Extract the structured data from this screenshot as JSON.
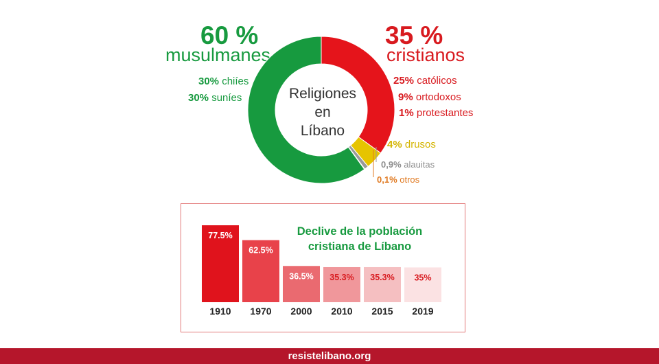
{
  "headline_left": {
    "pct": "60 %",
    "label": "musulmanes"
  },
  "headline_right": {
    "pct": "35 %",
    "label": "cristianos"
  },
  "center_lines": [
    "Religiones",
    "en",
    "Líbano"
  ],
  "colors": {
    "muslim": "#179a3f",
    "christian": "#e5141b",
    "druze": "#e6c400",
    "alawite": "#9a9a9a",
    "other": "#e07a22",
    "brand_footer": "#b5162b"
  },
  "legend": {
    "muslim_sub": [
      {
        "pct": "30%",
        "label": "chiíes"
      },
      {
        "pct": "30%",
        "label": "suníes"
      }
    ],
    "christian_sub": [
      {
        "pct": "25%",
        "label": "católicos"
      },
      {
        "pct": "9%",
        "label": "ortodoxos"
      },
      {
        "pct": "1%",
        "label": "protestantes"
      }
    ],
    "druze": {
      "pct": "4%",
      "label": "drusos"
    },
    "alawite": {
      "pct": "0,9%",
      "label": "alauitas"
    },
    "other": {
      "pct": "0,1%",
      "label": "otros"
    }
  },
  "bar_title_lines": [
    "Declive de la población",
    "cristiana de Líbano"
  ],
  "footer": "resistelibano.org",
  "chart_data": [
    {
      "type": "pie",
      "title": "Religiones en Líbano",
      "slices": [
        {
          "name": "cristianos",
          "value": 35,
          "color": "#e5141b"
        },
        {
          "name": "drusos",
          "value": 4,
          "color": "#e6c400"
        },
        {
          "name": "alauitas",
          "value": 0.9,
          "color": "#9a9a9a"
        },
        {
          "name": "otros",
          "value": 0.1,
          "color": "#e07a22"
        },
        {
          "name": "musulmanes",
          "value": 60,
          "color": "#179a3f"
        }
      ]
    },
    {
      "type": "bar",
      "title": "Declive de la población cristiana de Líbano",
      "categories": [
        "1910",
        "1970",
        "2000",
        "2010",
        "2015",
        "2019"
      ],
      "values": [
        77.5,
        62.5,
        36.5,
        35.3,
        35.3,
        35
      ],
      "value_labels": [
        "77.5%",
        "62.5%",
        "36.5%",
        "35.3%",
        "35.3%",
        "35%"
      ],
      "colors": [
        "#e0131c",
        "#e8424a",
        "#ea6a70",
        "#f0979b",
        "#f5bfc1",
        "#fbe2e3"
      ],
      "label_colors": [
        "#ffffff",
        "#ffffff",
        "#ffffff",
        "#d81a1f",
        "#d81a1f",
        "#d81a1f"
      ]
    }
  ]
}
